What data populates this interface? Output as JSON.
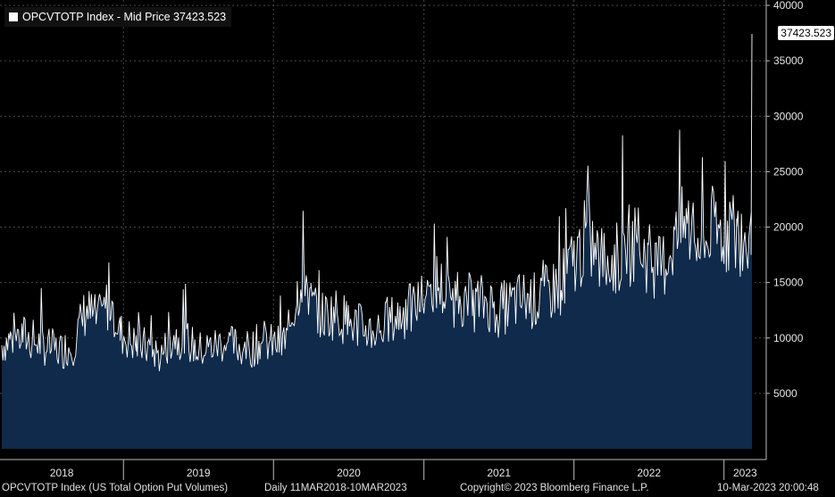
{
  "legend": {
    "label": "OPCVTOTP Index - Mid Price 37423.523",
    "swatch_color": "#ffffff"
  },
  "last_value_label": "37423.523",
  "footer": {
    "left": "OPCVTOTP Index (US Total Option Put Volumes)",
    "middle": "Daily 11MAR2018-10MAR2023",
    "copyright": "Copyright© 2023 Bloomberg Finance L.P.",
    "timestamp": "10-Mar-2023 20:00:48"
  },
  "colors": {
    "background": "#000000",
    "area_fill": "#0f2a4a",
    "line": "#ffffff",
    "grid": "#4a4a4a"
  },
  "chart_data": {
    "type": "area",
    "title": "OPCVTOTP Index - Mid Price 37423.523",
    "xlabel": "",
    "ylabel": "",
    "x_range": [
      "2018-03-11",
      "2023-03-10"
    ],
    "ylim": [
      0,
      40000
    ],
    "y_ticks": [
      5000,
      10000,
      15000,
      20000,
      25000,
      30000,
      35000,
      40000
    ],
    "y_tick_labels": [
      "5000",
      "10000",
      "15000",
      "20000",
      "25000",
      "30000",
      "35000",
      "40000"
    ],
    "x_tick_labels": [
      "2018",
      "2019",
      "2020",
      "2021",
      "2022",
      "2023"
    ],
    "grid": true,
    "legend_position": "top-left",
    "last_value": 37423.523,
    "series": [
      {
        "name": "OPCVTOTP Index - Mid Price",
        "dates": [
          "2018-03-11",
          "2018-04-01",
          "2018-05-01",
          "2018-06-01",
          "2018-07-01",
          "2018-08-01",
          "2018-09-01",
          "2018-10-01",
          "2018-11-01",
          "2018-12-01",
          "2018-12-24",
          "2019-01-15",
          "2019-02-01",
          "2019-03-01",
          "2019-04-01",
          "2019-05-01",
          "2019-06-01",
          "2019-07-01",
          "2019-08-01",
          "2019-09-01",
          "2019-10-01",
          "2019-11-01",
          "2019-12-01",
          "2020-01-15",
          "2020-02-01",
          "2020-02-28",
          "2020-03-15",
          "2020-04-01",
          "2020-05-01",
          "2020-06-01",
          "2020-07-01",
          "2020-08-01",
          "2020-09-01",
          "2020-10-01",
          "2020-11-01",
          "2020-12-01",
          "2021-01-15",
          "2021-02-01",
          "2021-03-01",
          "2021-04-01",
          "2021-05-01",
          "2021-06-01",
          "2021-07-01",
          "2021-08-01",
          "2021-09-01",
          "2021-10-01",
          "2021-11-01",
          "2021-12-01",
          "2022-01-15",
          "2022-02-01",
          "2022-03-01",
          "2022-04-01",
          "2022-05-01",
          "2022-06-01",
          "2022-07-01",
          "2022-08-01",
          "2022-09-01",
          "2022-10-01",
          "2022-11-01",
          "2022-12-01",
          "2023-01-15",
          "2023-02-01",
          "2023-02-28",
          "2023-03-10"
        ],
        "values": [
          9000,
          9500,
          9800,
          9200,
          8800,
          8500,
          9000,
          12000,
          11000,
          13000,
          10000,
          9500,
          9000,
          8800,
          8000,
          9800,
          9500,
          8500,
          8800,
          9200,
          8900,
          8600,
          9200,
          9000,
          9500,
          13500,
          16000,
          12500,
          11500,
          11800,
          11000,
          10500,
          10200,
          10800,
          11500,
          12000,
          13500,
          14500,
          13000,
          13200,
          12500,
          12800,
          12000,
          12500,
          13000,
          12800,
          13500,
          14500,
          17000,
          18500,
          16500,
          16000,
          17000,
          18000,
          16500,
          15500,
          18000,
          19500,
          17500,
          18500,
          19000,
          18500,
          17500,
          37423.523
        ]
      }
    ]
  }
}
